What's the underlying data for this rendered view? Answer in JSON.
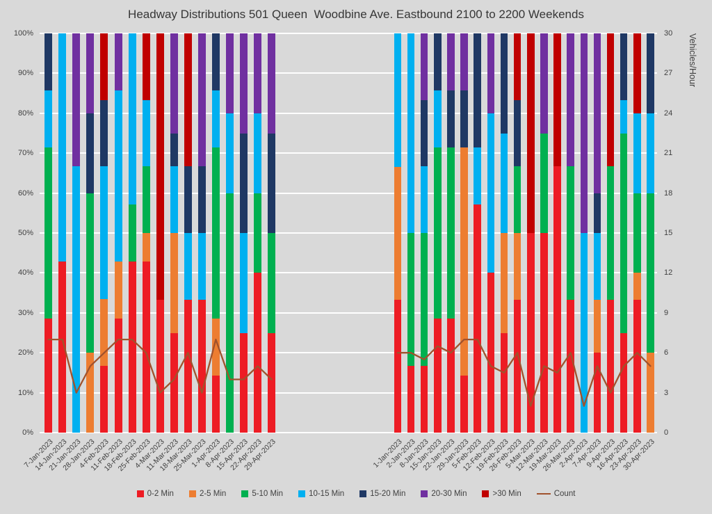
{
  "page": {
    "background": "#d9d9d9",
    "text_color": "#404040"
  },
  "chart_data": {
    "type": "bar",
    "stacked": true,
    "value_format": "percent",
    "title": "Headway Distributions 501 Queen  Woodbine Ave. Eastbound 2100 to 2200 Weekends",
    "grid": true,
    "legend_position": "bottom",
    "left_axis": {
      "min": 0,
      "max": 100,
      "tick_labels": [
        "0%",
        "10%",
        "20%",
        "30%",
        "40%",
        "50%",
        "60%",
        "70%",
        "80%",
        "90%",
        "100%"
      ]
    },
    "right_axis": {
      "label": "Vehicles/Hour",
      "min": 0,
      "max": 30,
      "tick_labels": [
        "0",
        "3",
        "6",
        "9",
        "12",
        "15",
        "18",
        "21",
        "24",
        "27",
        "30"
      ]
    },
    "series": [
      {
        "key": "0-2-min",
        "name": "0-2 Min",
        "color": "#ED1C24"
      },
      {
        "key": "2-5-min",
        "name": "2-5 Min",
        "color": "#ED7D31"
      },
      {
        "key": "5-10-min",
        "name": "5-10 Min",
        "color": "#00B050"
      },
      {
        "key": "10-15-min",
        "name": "10-15 Min",
        "color": "#00B0F0"
      },
      {
        "key": "15-20-min",
        "name": "15-20 Min",
        "color": "#1F3864"
      },
      {
        "key": "20-30-min",
        "name": "20-30 Min",
        "color": "#7030A0"
      },
      {
        "key": "gt-30-min",
        "name": ">30 Min",
        "color": "#C00000"
      }
    ],
    "count_series": {
      "key": "count",
      "name": "Count",
      "color": "#A0522D",
      "axis": "right"
    },
    "groups": [
      {
        "name": "left",
        "categories": [
          "7-Jan-2023",
          "14-Jan-2023",
          "21-Jan-2023",
          "28-Jan-2023",
          "4-Feb-2023",
          "11-Feb-2023",
          "18-Feb-2023",
          "25-Feb-2023",
          "4-Mar-2023",
          "11-Mar-2023",
          "18-Mar-2023",
          "25-Mar-2023",
          "1-Apr-2023",
          "8-Apr-2023",
          "15-Apr-2023",
          "22-Apr-2023",
          "29-Apr-2023"
        ],
        "bars": [
          [
            28.6,
            0,
            42.8,
            14.3,
            14.3,
            0,
            0
          ],
          [
            42.9,
            0,
            0,
            57.1,
            0,
            0,
            0
          ],
          [
            0,
            0,
            0,
            66.7,
            0,
            33.3,
            0
          ],
          [
            0,
            20,
            40,
            0,
            20,
            20,
            0
          ],
          [
            16.7,
            16.7,
            0,
            33.3,
            16.6,
            0,
            16.7
          ],
          [
            28.6,
            14.3,
            0,
            42.8,
            0,
            14.3,
            0
          ],
          [
            42.9,
            0,
            14.2,
            42.9,
            0,
            0,
            0
          ],
          [
            42.9,
            7.1,
            16.7,
            16.6,
            0,
            0,
            16.7
          ],
          [
            33.3,
            0,
            0,
            0,
            0,
            0,
            66.7
          ],
          [
            25,
            25,
            0,
            16.7,
            8.3,
            25,
            0
          ],
          [
            33.3,
            0,
            0,
            16.7,
            16.7,
            0,
            33.3
          ],
          [
            33.3,
            0,
            0,
            16.7,
            16.7,
            33.3,
            0
          ],
          [
            14.3,
            14.3,
            42.8,
            14.3,
            14.3,
            0,
            0
          ],
          [
            0,
            0,
            60,
            20,
            0,
            20,
            0
          ],
          [
            25,
            0,
            0,
            25,
            25,
            25,
            0
          ],
          [
            40,
            0,
            20,
            20,
            0,
            20,
            0
          ],
          [
            25,
            0,
            25,
            0,
            25,
            25,
            0
          ]
        ],
        "counts": [
          7,
          7,
          3,
          5,
          6,
          7,
          7,
          6,
          3,
          4,
          6,
          3,
          7,
          4,
          4,
          5,
          4
        ]
      },
      {
        "name": "right",
        "categories": [
          "1-Jan-2023",
          "2-Jan-2023",
          "8-Jan-2023",
          "15-Jan-2023",
          "22-Jan-2023",
          "29-Jan-2023",
          "5-Feb-2023",
          "12-Feb-2023",
          "19-Feb-2023",
          "26-Feb-2023",
          "5-Mar-2023",
          "12-Mar-2023",
          "19-Mar-2023",
          "26-Mar-2023",
          "2-Apr-2023",
          "7-Apr-2023",
          "9-Apr-2023",
          "16-Apr-2023",
          "23-Apr-2023",
          "30-Apr-2023"
        ],
        "bars": [
          [
            33.3,
            33.3,
            0,
            33.4,
            0,
            0,
            0
          ],
          [
            16.7,
            0,
            33.3,
            50,
            0,
            0,
            0
          ],
          [
            16.7,
            0,
            33.3,
            16.7,
            16.6,
            16.7,
            0
          ],
          [
            28.6,
            0,
            42.8,
            14.3,
            14.3,
            0,
            0
          ],
          [
            28.6,
            0,
            42.8,
            0,
            14.3,
            14.3,
            0
          ],
          [
            14.3,
            57.1,
            0,
            0,
            14.3,
            14.3,
            0
          ],
          [
            57.1,
            0,
            0,
            14.3,
            28.6,
            0,
            0
          ],
          [
            40,
            0,
            0,
            40,
            0,
            20,
            0
          ],
          [
            25,
            25,
            0,
            25,
            25,
            0,
            0
          ],
          [
            33.3,
            16.7,
            16.7,
            0,
            16.6,
            0,
            16.7
          ],
          [
            50,
            0,
            0,
            0,
            0,
            0,
            50
          ],
          [
            50,
            0,
            25,
            0,
            0,
            25,
            0
          ],
          [
            66.7,
            0,
            0,
            0,
            0,
            0,
            33.3
          ],
          [
            33.3,
            0,
            33.4,
            0,
            0,
            33.3,
            0
          ],
          [
            0,
            0,
            0,
            50,
            0,
            50,
            0
          ],
          [
            20,
            13.3,
            0,
            16.7,
            10,
            40,
            0
          ],
          [
            33.3,
            0,
            33.4,
            0,
            0,
            0,
            33.3
          ],
          [
            25,
            0,
            50,
            8.3,
            16.7,
            0,
            0
          ],
          [
            33.3,
            6.7,
            20,
            20,
            0,
            0,
            20
          ],
          [
            0,
            20,
            40,
            20,
            20,
            0,
            0
          ]
        ],
        "counts": [
          6,
          6,
          5.5,
          6.5,
          6,
          7,
          7,
          5,
          4.5,
          6,
          2,
          5,
          4.5,
          6,
          2,
          5,
          3,
          5,
          6,
          5
        ]
      }
    ]
  }
}
